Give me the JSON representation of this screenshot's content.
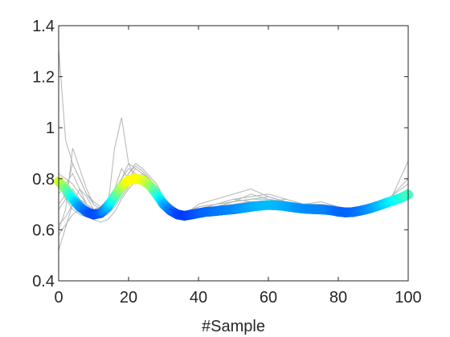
{
  "chart_data": {
    "type": "line",
    "title": "",
    "xlabel": "#Sample",
    "ylabel": "",
    "xlim": [
      0,
      100
    ],
    "ylim": [
      0.4,
      1.4
    ],
    "xticks": [
      0,
      20,
      40,
      60,
      80,
      100
    ],
    "yticks": [
      0.4,
      0.6,
      0.8,
      1,
      1.2,
      1.4
    ],
    "xtick_labels": [
      "0",
      "20",
      "40",
      "60",
      "80",
      "100"
    ],
    "ytick_labels": [
      "0.4",
      "0.6",
      "0.8",
      "1",
      "1.2",
      "1.4"
    ],
    "grid": false,
    "legend": "none",
    "background_series_color": "#b4b4b4",
    "mean_series_colormap": "jet",
    "background_series": [
      {
        "x": [
          0,
          2,
          4,
          6,
          8,
          10,
          12,
          14,
          16,
          18,
          20,
          22,
          24,
          26,
          28,
          30,
          32,
          34,
          36,
          38,
          40,
          45,
          50,
          55,
          60,
          65,
          70,
          75,
          80,
          85,
          90,
          95,
          100
        ],
        "y": [
          1.31,
          0.95,
          0.86,
          0.8,
          0.74,
          0.71,
          0.69,
          0.7,
          0.74,
          0.8,
          0.86,
          0.84,
          0.82,
          0.8,
          0.77,
          0.73,
          0.7,
          0.68,
          0.67,
          0.68,
          0.69,
          0.7,
          0.72,
          0.71,
          0.71,
          0.72,
          0.7,
          0.7,
          0.69,
          0.68,
          0.7,
          0.73,
          0.8
        ]
      },
      {
        "x": [
          0,
          2,
          4,
          6,
          8,
          10,
          12,
          14,
          16,
          18,
          20,
          22,
          24,
          26,
          28,
          30,
          32,
          34,
          36,
          38,
          40,
          45,
          50,
          55,
          60,
          65,
          70,
          75,
          80,
          85,
          90,
          95,
          100
        ],
        "y": [
          0.52,
          0.61,
          0.7,
          0.76,
          0.73,
          0.68,
          0.66,
          0.67,
          0.71,
          0.77,
          0.82,
          0.86,
          0.84,
          0.81,
          0.78,
          0.73,
          0.68,
          0.65,
          0.64,
          0.66,
          0.67,
          0.68,
          0.69,
          0.7,
          0.71,
          0.7,
          0.69,
          0.68,
          0.67,
          0.68,
          0.7,
          0.72,
          0.74
        ]
      },
      {
        "x": [
          0,
          2,
          4,
          6,
          8,
          10,
          12,
          14,
          16,
          18,
          20,
          22,
          24,
          26,
          28,
          30,
          32,
          34,
          36,
          38,
          40,
          45,
          50,
          55,
          60,
          65,
          70,
          75,
          80,
          85,
          90,
          95,
          100
        ],
        "y": [
          0.6,
          0.68,
          0.92,
          0.84,
          0.76,
          0.7,
          0.68,
          0.7,
          0.76,
          0.84,
          0.8,
          0.78,
          0.8,
          0.79,
          0.76,
          0.72,
          0.69,
          0.67,
          0.66,
          0.67,
          0.68,
          0.69,
          0.7,
          0.71,
          0.7,
          0.7,
          0.69,
          0.7,
          0.68,
          0.67,
          0.69,
          0.72,
          0.75
        ]
      },
      {
        "x": [
          0,
          2,
          4,
          6,
          8,
          10,
          12,
          14,
          16,
          18,
          20,
          22,
          24,
          26,
          28,
          30,
          32,
          34,
          36,
          38,
          40,
          45,
          50,
          55,
          60,
          65,
          70,
          75,
          80,
          85,
          90,
          95,
          100
        ],
        "y": [
          0.78,
          0.72,
          0.68,
          0.66,
          0.65,
          0.64,
          0.65,
          0.67,
          0.7,
          0.74,
          0.78,
          0.8,
          0.82,
          0.8,
          0.76,
          0.71,
          0.68,
          0.66,
          0.65,
          0.66,
          0.67,
          0.69,
          0.71,
          0.74,
          0.72,
          0.7,
          0.69,
          0.69,
          0.68,
          0.67,
          0.68,
          0.71,
          0.73
        ]
      },
      {
        "x": [
          0,
          2,
          4,
          6,
          8,
          10,
          12,
          14,
          16,
          18,
          20,
          22,
          24,
          26,
          28,
          30,
          32,
          34,
          36,
          38,
          40,
          45,
          50,
          55,
          60,
          65,
          70,
          75,
          80,
          85,
          90,
          95,
          100
        ],
        "y": [
          0.68,
          0.72,
          0.76,
          0.72,
          0.69,
          0.67,
          0.66,
          0.68,
          0.92,
          1.04,
          0.86,
          0.8,
          0.78,
          0.76,
          0.74,
          0.71,
          0.69,
          0.67,
          0.66,
          0.67,
          0.68,
          0.69,
          0.71,
          0.72,
          0.73,
          0.71,
          0.7,
          0.69,
          0.68,
          0.67,
          0.69,
          0.72,
          0.76
        ]
      },
      {
        "x": [
          0,
          2,
          4,
          6,
          8,
          10,
          12,
          14,
          16,
          18,
          20,
          22,
          24,
          26,
          28,
          30,
          32,
          34,
          36,
          38,
          40,
          45,
          50,
          55,
          60,
          65,
          70,
          75,
          80,
          85,
          90,
          95,
          100
        ],
        "y": [
          0.74,
          0.78,
          0.82,
          0.76,
          0.7,
          0.67,
          0.66,
          0.68,
          0.72,
          0.76,
          0.8,
          0.84,
          0.82,
          0.79,
          0.75,
          0.71,
          0.68,
          0.66,
          0.65,
          0.66,
          0.68,
          0.7,
          0.72,
          0.73,
          0.74,
          0.72,
          0.7,
          0.71,
          0.69,
          0.68,
          0.7,
          0.73,
          0.78
        ]
      },
      {
        "x": [
          0,
          2,
          4,
          6,
          8,
          10,
          12,
          14,
          16,
          18,
          20,
          22,
          24,
          26,
          28,
          30,
          32,
          34,
          36,
          38,
          40,
          45,
          50,
          55,
          60,
          65,
          70,
          75,
          80,
          85,
          90,
          95,
          100
        ],
        "y": [
          0.58,
          0.62,
          0.66,
          0.68,
          0.66,
          0.64,
          0.63,
          0.64,
          0.67,
          0.72,
          0.76,
          0.79,
          0.81,
          0.79,
          0.75,
          0.7,
          0.67,
          0.65,
          0.64,
          0.65,
          0.66,
          0.67,
          0.69,
          0.7,
          0.7,
          0.69,
          0.68,
          0.68,
          0.67,
          0.66,
          0.68,
          0.7,
          0.72
        ]
      },
      {
        "x": [
          0,
          2,
          4,
          6,
          8,
          10,
          12,
          14,
          16,
          18,
          20,
          22,
          24,
          26,
          28,
          30,
          32,
          34,
          36,
          38,
          40,
          45,
          50,
          55,
          60,
          65,
          70,
          75,
          80,
          85,
          90,
          95,
          100
        ],
        "y": [
          0.82,
          0.8,
          0.78,
          0.74,
          0.7,
          0.68,
          0.69,
          0.72,
          0.76,
          0.8,
          0.84,
          0.82,
          0.8,
          0.77,
          0.73,
          0.7,
          0.68,
          0.67,
          0.66,
          0.68,
          0.7,
          0.72,
          0.74,
          0.76,
          0.73,
          0.71,
          0.7,
          0.69,
          0.69,
          0.68,
          0.7,
          0.72,
          0.75
        ]
      },
      {
        "x": [
          0,
          2,
          4,
          6,
          8,
          10,
          12,
          14,
          16,
          18,
          20,
          22,
          24,
          26,
          28,
          30,
          32,
          34,
          36,
          38,
          40,
          45,
          50,
          55,
          60,
          65,
          70,
          75,
          80,
          85,
          90,
          95,
          100
        ],
        "y": [
          0.62,
          0.65,
          0.7,
          0.72,
          0.7,
          0.67,
          0.65,
          0.66,
          0.69,
          0.73,
          0.77,
          0.8,
          0.78,
          0.75,
          0.72,
          0.69,
          0.67,
          0.65,
          0.64,
          0.65,
          0.66,
          0.68,
          0.7,
          0.71,
          0.7,
          0.69,
          0.68,
          0.67,
          0.66,
          0.66,
          0.68,
          0.71,
          0.74
        ]
      },
      {
        "x": [
          0,
          2,
          4,
          6,
          8,
          10,
          12,
          14,
          16,
          18,
          20,
          22,
          24,
          26,
          28,
          30,
          32,
          34,
          36,
          38,
          40,
          45,
          50,
          55,
          60,
          65,
          70,
          75,
          80,
          85,
          90,
          95,
          100
        ],
        "y": [
          0.7,
          0.74,
          0.86,
          0.8,
          0.74,
          0.7,
          0.68,
          0.69,
          0.73,
          0.78,
          0.82,
          0.85,
          0.83,
          0.8,
          0.76,
          0.72,
          0.69,
          0.67,
          0.66,
          0.67,
          0.69,
          0.7,
          0.71,
          0.72,
          0.72,
          0.71,
          0.7,
          0.7,
          0.69,
          0.68,
          0.69,
          0.72,
          0.87
        ]
      }
    ],
    "mean_series": {
      "x": [
        0,
        2,
        4,
        6,
        8,
        10,
        12,
        14,
        16,
        18,
        20,
        22,
        24,
        26,
        28,
        30,
        32,
        34,
        36,
        38,
        40,
        42,
        44,
        46,
        48,
        50,
        52,
        54,
        56,
        58,
        60,
        62,
        64,
        66,
        68,
        70,
        72,
        74,
        76,
        78,
        80,
        82,
        84,
        86,
        88,
        90,
        92,
        94,
        96,
        98,
        100
      ],
      "y": [
        0.79,
        0.76,
        0.72,
        0.69,
        0.67,
        0.66,
        0.665,
        0.69,
        0.73,
        0.77,
        0.795,
        0.8,
        0.795,
        0.775,
        0.74,
        0.7,
        0.675,
        0.66,
        0.655,
        0.66,
        0.665,
        0.67,
        0.672,
        0.675,
        0.678,
        0.68,
        0.684,
        0.688,
        0.692,
        0.695,
        0.697,
        0.696,
        0.694,
        0.69,
        0.686,
        0.683,
        0.681,
        0.68,
        0.679,
        0.676,
        0.671,
        0.668,
        0.669,
        0.674,
        0.68,
        0.688,
        0.697,
        0.707,
        0.716,
        0.726,
        0.738
      ]
    }
  }
}
